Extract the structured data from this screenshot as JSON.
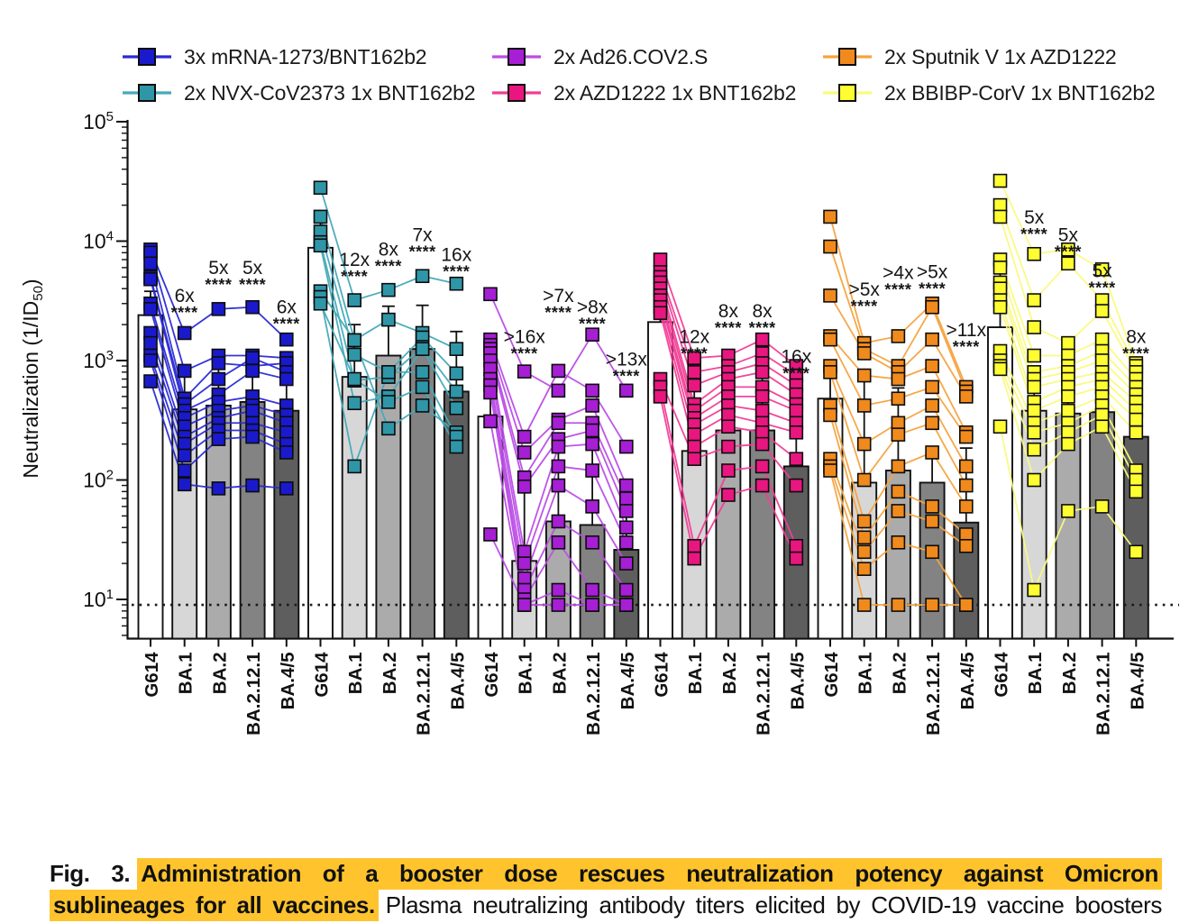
{
  "figure_type": "scientific-figure",
  "legend": {
    "items": [
      {
        "label": "3x mRNA-1273/BNT162b2",
        "color": "#1a1acc",
        "line_color": "#2a2ad6",
        "row": 0,
        "col": 0
      },
      {
        "label": "2x Ad26.COV2.S",
        "color": "#a61fd4",
        "line_color": "#bb4ce6",
        "row": 0,
        "col": 1
      },
      {
        "label": "2x Sputnik V 1x AZD1222",
        "color": "#f08a1d",
        "line_color": "#f5a33f",
        "row": 0,
        "col": 2
      },
      {
        "label": "2x NVX-CoV2373 1x BNT162b2",
        "color": "#2f96a8",
        "line_color": "#45aab8",
        "row": 1,
        "col": 0
      },
      {
        "label": "2x AZD1222 1x BNT162b2",
        "color": "#e91680",
        "line_color": "#f23d96",
        "row": 1,
        "col": 1
      },
      {
        "label": "2x BBIBP-CorV 1x BNT162b2",
        "color": "#fdfd32",
        "line_color": "#fafa7e",
        "row": 1,
        "col": 2
      }
    ]
  },
  "chart_data": {
    "type": "bar",
    "subtype": "grouped bars (geometric mean + SD) with paired individual scatter points connected per subject, log10 y-axis",
    "title": "",
    "xlabel": "",
    "ylabel": "Neutralization (1/ID50)",
    "ylabel_parts": {
      "prefix": "Neutralization (1/ID",
      "sub": "50",
      "suffix": ")"
    },
    "ylim": [
      5,
      100000
    ],
    "yscale": "log",
    "y_ticks": [
      {
        "base": "10",
        "exp": "1",
        "value": 10
      },
      {
        "base": "10",
        "exp": "2",
        "value": 100
      },
      {
        "base": "10",
        "exp": "3",
        "value": 1000
      },
      {
        "base": "10",
        "exp": "4",
        "value": 10000
      },
      {
        "base": "10",
        "exp": "5",
        "value": 100000
      }
    ],
    "categories": [
      "G614",
      "BA.1",
      "BA.2",
      "BA.2.12.1",
      "BA.4/5"
    ],
    "limit_of_detection": 9,
    "bar_fills": [
      "#ffffff",
      "#d7d7d7",
      "#ababab",
      "#838383",
      "#5e5e5e"
    ],
    "bar_stroke": "#111111",
    "groups": [
      {
        "name": "3x mRNA-1273/BNT162b2",
        "color": "#1a1acc",
        "line_color": "#2a2ad6",
        "bar_means": [
          2400,
          390,
          420,
          450,
          380
        ],
        "error_tops": [
          3800,
          800,
          900,
          900,
          800
        ],
        "fold_annotations": [
          {
            "variant": "BA.1",
            "label": "6x",
            "stars": "****",
            "y": 3100
          },
          {
            "variant": "BA.2",
            "label": "5x",
            "stars": "****",
            "y": 5300
          },
          {
            "variant": "BA.2.12.1",
            "label": "5x",
            "stars": "****",
            "y": 5300
          },
          {
            "variant": "BA.4/5",
            "label": "6x",
            "stars": "****",
            "y": 2500
          }
        ],
        "subjects": [
          [
            8500,
            1700,
            2700,
            2800,
            1500
          ],
          [
            8000,
            820,
            1100,
            1100,
            1050
          ],
          [
            6500,
            480,
            950,
            900,
            950
          ],
          [
            5000,
            430,
            700,
            1050,
            800
          ],
          [
            4800,
            380,
            520,
            820,
            700
          ],
          [
            3000,
            330,
            450,
            500,
            420
          ],
          [
            2700,
            280,
            380,
            420,
            350
          ],
          [
            1700,
            230,
            330,
            380,
            300
          ],
          [
            1400,
            200,
            300,
            300,
            250
          ],
          [
            1100,
            160,
            260,
            260,
            200
          ],
          [
            1000,
            120,
            220,
            230,
            170
          ],
          [
            670,
            92,
            85,
            90,
            85
          ]
        ]
      },
      {
        "name": "2x NVX-CoV2373 1x BNT162b2",
        "color": "#2f96a8",
        "line_color": "#45aab8",
        "bar_means": [
          8800,
          730,
          1100,
          1250,
          550
        ],
        "error_tops": [
          18000,
          2000,
          2850,
          2900,
          1750
        ],
        "fold_annotations": [
          {
            "variant": "BA.1",
            "label": "12x",
            "stars": "****",
            "y": 6200
          },
          {
            "variant": "BA.2",
            "label": "8x",
            "stars": "****",
            "y": 7600
          },
          {
            "variant": "BA.2.12.1",
            "label": "7x",
            "stars": "****",
            "y": 10000
          },
          {
            "variant": "BA.4/5",
            "label": "16x",
            "stars": "****",
            "y": 6800
          }
        ],
        "subjects": [
          [
            28000,
            3200,
            3900,
            5100,
            4400
          ],
          [
            16000,
            1480,
            2200,
            1700,
            1250
          ],
          [
            12000,
            1120,
            800,
            1560,
            780
          ],
          [
            9800,
            680,
            730,
            1300,
            550
          ],
          [
            9200,
            440,
            500,
            1250,
            400
          ],
          [
            3800,
            1480,
            270,
            420,
            250
          ],
          [
            3400,
            130,
            800,
            800,
            230
          ],
          [
            3000,
            700,
            450,
            600,
            190
          ]
        ]
      },
      {
        "name": "2x Ad26.COV2.S",
        "color": "#a61fd4",
        "line_color": "#bb4ce6",
        "bar_means": [
          340,
          21,
          45,
          42,
          26
        ],
        "error_tops": [
          1400,
          88,
          200,
          200,
          99
        ],
        "fold_annotations": [
          {
            "variant": "BA.1",
            "label": ">16x",
            "stars": "****",
            "y": 1400
          },
          {
            "variant": "BA.2",
            "label": ">7x",
            "stars": "****",
            "y": 3100
          },
          {
            "variant": "BA.2.12.1",
            "label": ">8x",
            "stars": "****",
            "y": 2500
          },
          {
            "variant": "BA.4/5",
            "label": ">13x",
            "stars": "****",
            "y": 910
          }
        ],
        "subjects": [
          [
            3600,
            810,
            560,
            1650,
            560
          ],
          [
            1500,
            230,
            820,
            560,
            190
          ],
          [
            1350,
            170,
            320,
            420,
            90
          ],
          [
            1250,
            105,
            300,
            300,
            70
          ],
          [
            1150,
            88,
            220,
            260,
            55
          ],
          [
            1000,
            25,
            190,
            200,
            40
          ],
          [
            850,
            20,
            130,
            120,
            30
          ],
          [
            700,
            15,
            90,
            60,
            20
          ],
          [
            620,
            12,
            45,
            30,
            12
          ],
          [
            540,
            10,
            30,
            12,
            9
          ],
          [
            310,
            9,
            12,
            9,
            9
          ],
          [
            35,
            9,
            9,
            9,
            9
          ]
        ]
      },
      {
        "name": "2x AZD1222 1x BNT162b2",
        "color": "#e91680",
        "line_color": "#f23d96",
        "bar_means": [
          2100,
          175,
          260,
          260,
          130
        ],
        "error_tops": [
          3600,
          700,
          900,
          900,
          600
        ],
        "fold_annotations": [
          {
            "variant": "BA.1",
            "label": "12x",
            "stars": "****",
            "y": 1400
          },
          {
            "variant": "BA.2",
            "label": "8x",
            "stars": "****",
            "y": 2300
          },
          {
            "variant": "BA.2.12.1",
            "label": "8x",
            "stars": "****",
            "y": 2300
          },
          {
            "variant": "BA.4/5",
            "label": "16x",
            "stars": "****",
            "y": 960
          }
        ],
        "subjects": [
          [
            7000,
            1050,
            1100,
            1500,
            900
          ],
          [
            5500,
            800,
            900,
            1150,
            750
          ],
          [
            5000,
            620,
            800,
            950,
            620
          ],
          [
            4500,
            430,
            700,
            800,
            520
          ],
          [
            4000,
            380,
            600,
            600,
            430
          ],
          [
            3500,
            330,
            500,
            500,
            380
          ],
          [
            3200,
            290,
            420,
            380,
            300
          ],
          [
            2800,
            240,
            350,
            300,
            250
          ],
          [
            2500,
            190,
            280,
            250,
            150
          ],
          [
            700,
            150,
            190,
            200,
            90
          ],
          [
            600,
            28,
            120,
            130,
            28
          ],
          [
            500,
            22,
            75,
            90,
            22
          ]
        ]
      },
      {
        "name": "2x Sputnik V 1x AZD1222",
        "color": "#f08a1d",
        "line_color": "#f5a33f",
        "bar_means": [
          480,
          95,
          120,
          95,
          44
        ],
        "error_tops": [
          750,
          700,
          590,
          175,
          185
        ],
        "fold_annotations": [
          {
            "variant": "BA.1",
            "label": ">5x",
            "stars": "****",
            "y": 3500
          },
          {
            "variant": "BA.2",
            "label": ">4x",
            "stars": "****",
            "y": 4800
          },
          {
            "variant": "BA.2.12.1",
            "label": ">5x",
            "stars": "****",
            "y": 4900
          },
          {
            "variant": "BA.4/5",
            "label": ">11x",
            "stars": "****",
            "y": 1600
          }
        ],
        "subjects": [
          [
            16000,
            1400,
            1600,
            3000,
            600
          ],
          [
            9000,
            1250,
            900,
            2800,
            550
          ],
          [
            3500,
            1150,
            800,
            1500,
            500
          ],
          [
            1600,
            750,
            700,
            900,
            250
          ],
          [
            1500,
            420,
            480,
            600,
            230
          ],
          [
            900,
            200,
            300,
            420,
            130
          ],
          [
            800,
            100,
            240,
            300,
            90
          ],
          [
            420,
            45,
            130,
            170,
            60
          ],
          [
            350,
            33,
            80,
            60,
            35
          ],
          [
            150,
            25,
            55,
            45,
            28
          ],
          [
            130,
            18,
            30,
            25,
            9
          ],
          [
            120,
            9,
            9,
            9,
            9
          ]
        ]
      },
      {
        "name": "2x BBIBP-CorV 1x BNT162b2",
        "color": "#fdfd32",
        "line_color": "#fafa7e",
        "bar_means": [
          1900,
          380,
          360,
          370,
          230
        ],
        "error_tops": [
          7800,
          900,
          900,
          900,
          500
        ],
        "fold_annotations": [
          {
            "variant": "BA.1",
            "label": "5x",
            "stars": "****",
            "y": 14000
          },
          {
            "variant": "BA.2",
            "label": "5x",
            "stars": "****",
            "y": 10000
          },
          {
            "variant": "BA.2.12.1",
            "label": "5x",
            "stars": "****",
            "y": 5000
          },
          {
            "variant": "BA.4/5",
            "label": "8x",
            "stars": "****",
            "y": 1400
          }
        ],
        "subjects": [
          [
            32000,
            7800,
            8500,
            5800,
            950
          ],
          [
            20000,
            3200,
            6500,
            3200,
            900
          ],
          [
            16000,
            1900,
            1400,
            2600,
            800
          ],
          [
            7000,
            1100,
            1100,
            1500,
            700
          ],
          [
            6000,
            800,
            900,
            1200,
            600
          ],
          [
            4500,
            700,
            800,
            1000,
            520
          ],
          [
            4000,
            600,
            700,
            800,
            450
          ],
          [
            3200,
            450,
            600,
            700,
            380
          ],
          [
            2800,
            380,
            500,
            600,
            320
          ],
          [
            1200,
            300,
            380,
            500,
            250
          ],
          [
            1000,
            250,
            300,
            420,
            120
          ],
          [
            900,
            180,
            250,
            350,
            100
          ],
          [
            850,
            100,
            200,
            280,
            80
          ],
          [
            280,
            12,
            55,
            60,
            25
          ]
        ]
      }
    ]
  },
  "caption": {
    "fig_label": "Fig. 3.",
    "highlight_1": "Administration of a booster dose rescues neutralization potency against Omicron",
    "highlight_2": "sublineages for all vaccines.",
    "continuation": "Plasma neutralizing antibody titers elicited by COVID-19 vaccine boosters",
    "highlight_color": "#ffc42d"
  }
}
